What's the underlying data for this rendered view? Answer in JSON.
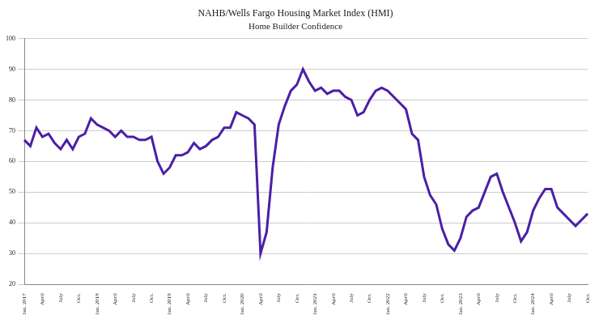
{
  "chart_data": {
    "type": "line",
    "title": "NAHB/Wells Fargo Housing Market Index (HMI)",
    "subtitle": "Home Builder Confidence",
    "categories": [
      "Jan. 2017",
      null,
      null,
      "April",
      null,
      null,
      "July",
      null,
      null,
      "Oct.",
      null,
      null,
      "Jan. 2018",
      null,
      null,
      "April",
      null,
      null,
      "July",
      null,
      null,
      "Oct.",
      null,
      null,
      "Jan. 2019",
      null,
      null,
      "April",
      null,
      null,
      "July",
      null,
      null,
      "Oct.",
      null,
      null,
      "Jan. 2020",
      null,
      null,
      "April",
      null,
      null,
      "July",
      null,
      null,
      "Oct.",
      null,
      null,
      "Jan. 2021",
      null,
      null,
      "April",
      null,
      null,
      "July",
      null,
      null,
      "Oct.",
      null,
      null,
      "Jan. 2022",
      null,
      null,
      "April",
      null,
      null,
      "July",
      null,
      null,
      "Oct.",
      null,
      null,
      "Jan. 2023",
      null,
      null,
      "April",
      null,
      null,
      "July",
      null,
      null,
      "Oct.",
      null,
      null,
      "Jan. 2024",
      null,
      null,
      "April",
      null,
      null,
      "July",
      null,
      null,
      "Oct."
    ],
    "values": [
      67,
      65,
      71,
      68,
      69,
      66,
      64,
      67,
      64,
      68,
      69,
      74,
      72,
      71,
      70,
      68,
      70,
      68,
      68,
      67,
      67,
      68,
      60,
      56,
      58,
      62,
      62,
      63,
      66,
      64,
      65,
      67,
      68,
      71,
      71,
      76,
      75,
      74,
      72,
      30,
      37,
      58,
      72,
      78,
      83,
      85,
      90,
      86,
      83,
      84,
      82,
      83,
      83,
      81,
      80,
      75,
      76,
      80,
      83,
      84,
      83,
      81,
      79,
      77,
      69,
      67,
      55,
      49,
      46,
      38,
      33,
      31,
      35,
      42,
      44,
      45,
      50,
      55,
      56,
      50,
      45,
      40,
      34,
      37,
      44,
      48,
      51,
      51,
      45,
      43,
      41,
      39,
      41,
      43
    ],
    "color": "#4b1fa6",
    "ylim": [
      20,
      100
    ],
    "yticks": [
      20,
      30,
      40,
      50,
      60,
      70,
      80,
      90,
      100
    ],
    "grid": true
  }
}
